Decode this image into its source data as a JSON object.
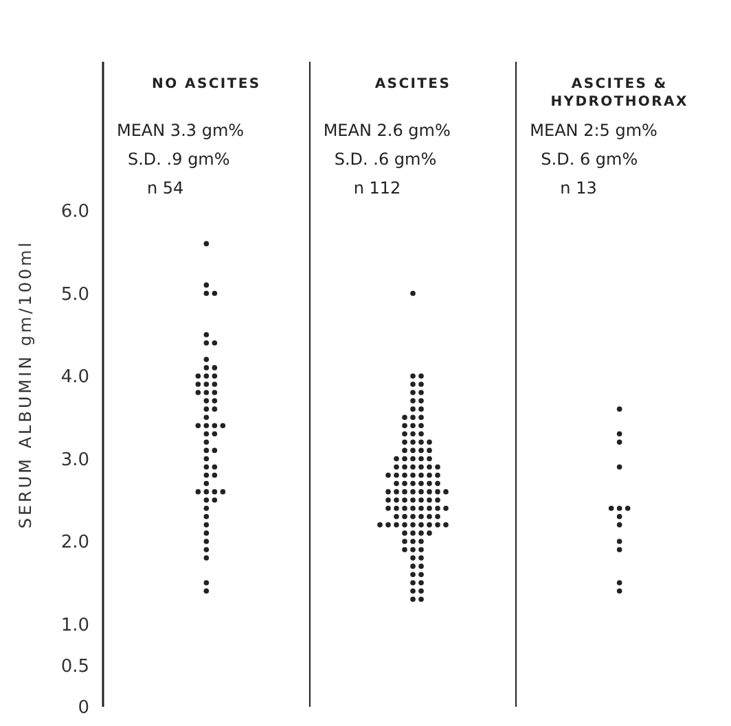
{
  "chart_data": {
    "type": "scatter",
    "ylabel": "SERUM ALBUMIN gm/100ml",
    "categories": [
      "NO ASCITES",
      "ASCITES",
      "ASCITES & HYDROTHORAX"
    ],
    "annotations": [
      "MEAN 3.3 gm%",
      "S.D. .9 gm%",
      "n 54",
      "MEAN 2.6 gm%",
      "S.D. .6 gm%",
      "n 112",
      "MEAN 2:5 gm%",
      "S.D. 6 gm%",
      "n 13"
    ],
    "ylim": [
      0,
      7.8
    ],
    "yticks": [
      0,
      {
        "value": 0.5,
        "label": "0.5"
      },
      {
        "value": 1,
        "label": "1.0"
      },
      {
        "value": 2,
        "label": "2.0"
      },
      {
        "value": 3,
        "label": "3.0"
      },
      {
        "value": 4,
        "label": "4.0"
      },
      {
        "value": 5,
        "label": "5.0"
      },
      {
        "value": 6,
        "label": "6.0"
      }
    ],
    "marker": "circle",
    "grid": false,
    "legend": false,
    "series": [
      {
        "color": "#222222",
        "x": [
          "NO ASCITES",
          "NO ASCITES",
          "NO ASCITES",
          "NO ASCITES",
          "NO ASCITES",
          "NO ASCITES",
          "NO ASCITES",
          "NO ASCITES",
          "NO ASCITES",
          "NO ASCITES",
          "NO ASCITES",
          "NO ASCITES",
          "NO ASCITES",
          "NO ASCITES",
          "NO ASCITES",
          "NO ASCITES",
          "NO ASCITES",
          "NO ASCITES",
          "NO ASCITES",
          "NO ASCITES",
          "NO ASCITES",
          "NO ASCITES",
          "NO ASCITES",
          "NO ASCITES",
          "NO ASCITES",
          "NO ASCITES",
          "NO ASCITES",
          "NO ASCITES",
          "NO ASCITES",
          "NO ASCITES",
          "NO ASCITES",
          "NO ASCITES",
          "NO ASCITES",
          "NO ASCITES",
          "NO ASCITES",
          "NO ASCITES",
          "NO ASCITES",
          "NO ASCITES",
          "NO ASCITES",
          "NO ASCITES",
          "NO ASCITES",
          "NO ASCITES",
          "NO ASCITES",
          "NO ASCITES",
          "NO ASCITES",
          "NO ASCITES",
          "NO ASCITES",
          "NO ASCITES",
          "NO ASCITES",
          "NO ASCITES",
          "NO ASCITES",
          "NO ASCITES",
          "NO ASCITES",
          "NO ASCITES"
        ],
        "values": [
          5.6,
          5.1,
          5.0,
          5.0,
          4.5,
          4.4,
          4.4,
          4.2,
          4.1,
          4.1,
          4.0,
          4.0,
          4.0,
          3.9,
          3.9,
          3.9,
          3.8,
          3.8,
          3.8,
          3.7,
          3.7,
          3.6,
          3.6,
          3.5,
          3.4,
          3.4,
          3.4,
          3.4,
          3.3,
          3.3,
          3.2,
          3.1,
          3.1,
          3.0,
          2.9,
          2.9,
          2.8,
          2.8,
          2.7,
          2.6,
          2.6,
          2.6,
          2.6,
          2.5,
          2.5,
          2.4,
          2.3,
          2.2,
          2.1,
          2.0,
          1.9,
          1.8,
          1.5,
          1.4
        ]
      },
      {
        "color": "#222222",
        "x": [
          "ASCITES",
          "ASCITES",
          "ASCITES",
          "ASCITES",
          "ASCITES",
          "ASCITES",
          "ASCITES",
          "ASCITES",
          "ASCITES",
          "ASCITES",
          "ASCITES",
          "ASCITES",
          "ASCITES",
          "ASCITES",
          "ASCITES",
          "ASCITES",
          "ASCITES",
          "ASCITES",
          "ASCITES",
          "ASCITES",
          "ASCITES",
          "ASCITES",
          "ASCITES",
          "ASCITES",
          "ASCITES",
          "ASCITES",
          "ASCITES",
          "ASCITES",
          "ASCITES",
          "ASCITES",
          "ASCITES",
          "ASCITES",
          "ASCITES",
          "ASCITES",
          "ASCITES",
          "ASCITES",
          "ASCITES",
          "ASCITES",
          "ASCITES",
          "ASCITES",
          "ASCITES",
          "ASCITES",
          "ASCITES",
          "ASCITES",
          "ASCITES",
          "ASCITES",
          "ASCITES",
          "ASCITES",
          "ASCITES",
          "ASCITES",
          "ASCITES",
          "ASCITES",
          "ASCITES",
          "ASCITES",
          "ASCITES",
          "ASCITES",
          "ASCITES",
          "ASCITES",
          "ASCITES",
          "ASCITES",
          "ASCITES",
          "ASCITES",
          "ASCITES",
          "ASCITES",
          "ASCITES",
          "ASCITES",
          "ASCITES",
          "ASCITES",
          "ASCITES",
          "ASCITES",
          "ASCITES",
          "ASCITES",
          "ASCITES",
          "ASCITES",
          "ASCITES",
          "ASCITES",
          "ASCITES",
          "ASCITES",
          "ASCITES",
          "ASCITES",
          "ASCITES",
          "ASCITES",
          "ASCITES",
          "ASCITES",
          "ASCITES",
          "ASCITES",
          "ASCITES",
          "ASCITES",
          "ASCITES",
          "ASCITES",
          "ASCITES",
          "ASCITES",
          "ASCITES",
          "ASCITES",
          "ASCITES",
          "ASCITES",
          "ASCITES",
          "ASCITES",
          "ASCITES",
          "ASCITES",
          "ASCITES",
          "ASCITES",
          "ASCITES",
          "ASCITES",
          "ASCITES",
          "ASCITES",
          "ASCITES",
          "ASCITES",
          "ASCITES",
          "ASCITES",
          "ASCITES",
          "ASCITES"
        ],
        "values": [
          5.0,
          4.0,
          4.0,
          3.9,
          3.9,
          3.8,
          3.8,
          3.7,
          3.7,
          3.6,
          3.6,
          3.5,
          3.5,
          3.5,
          3.4,
          3.4,
          3.4,
          3.3,
          3.3,
          3.3,
          3.2,
          3.2,
          3.2,
          3.2,
          3.1,
          3.1,
          3.1,
          3.1,
          3.0,
          3.0,
          3.0,
          3.0,
          3.0,
          2.9,
          2.9,
          2.9,
          2.9,
          2.9,
          2.9,
          2.8,
          2.8,
          2.8,
          2.8,
          2.8,
          2.8,
          2.8,
          2.7,
          2.7,
          2.7,
          2.7,
          2.7,
          2.7,
          2.6,
          2.6,
          2.6,
          2.6,
          2.6,
          2.6,
          2.6,
          2.6,
          2.5,
          2.5,
          2.5,
          2.5,
          2.5,
          2.5,
          2.5,
          2.4,
          2.4,
          2.4,
          2.4,
          2.4,
          2.4,
          2.4,
          2.4,
          2.3,
          2.3,
          2.3,
          2.3,
          2.3,
          2.3,
          2.2,
          2.2,
          2.2,
          2.2,
          2.2,
          2.2,
          2.2,
          2.2,
          2.2,
          2.1,
          2.1,
          2.1,
          2.1,
          2.0,
          2.0,
          2.0,
          1.9,
          1.9,
          1.9,
          1.8,
          1.8,
          1.7,
          1.7,
          1.6,
          1.6,
          1.5,
          1.5,
          1.4,
          1.4,
          1.3,
          1.3
        ]
      },
      {
        "color": "#222222",
        "x": [
          "ASCITES & HYDROTHORAX",
          "ASCITES & HYDROTHORAX",
          "ASCITES & HYDROTHORAX",
          "ASCITES & HYDROTHORAX",
          "ASCITES & HYDROTHORAX",
          "ASCITES & HYDROTHORAX",
          "ASCITES & HYDROTHORAX",
          "ASCITES & HYDROTHORAX",
          "ASCITES & HYDROTHORAX",
          "ASCITES & HYDROTHORAX",
          "ASCITES & HYDROTHORAX",
          "ASCITES & HYDROTHORAX",
          "ASCITES & HYDROTHORAX"
        ],
        "values": [
          3.6,
          3.3,
          3.2,
          2.9,
          2.4,
          2.4,
          2.4,
          2.3,
          2.2,
          2.0,
          1.9,
          1.5,
          1.4
        ]
      }
    ]
  }
}
